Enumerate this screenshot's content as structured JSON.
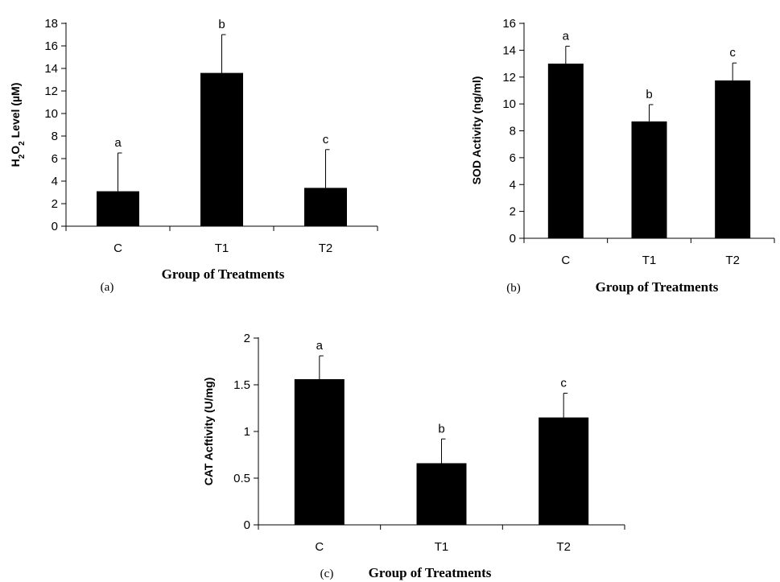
{
  "chart_data": [
    {
      "type": "bar",
      "panel_label": "(a)",
      "categories": [
        "C",
        "T1",
        "T2"
      ],
      "values": [
        3.1,
        13.6,
        3.4
      ],
      "error": [
        3.4,
        3.4,
        3.4
      ],
      "significance": [
        "a",
        "b",
        "c"
      ],
      "ylabel_parts": {
        "a": "H",
        "sub1": "2",
        "b": "O",
        "sub2": "2",
        "c": " Level (µM)"
      },
      "xlabel": "Group of Treatments",
      "ylim": [
        0,
        18
      ],
      "yticks": [
        "0",
        "2",
        "4",
        "6",
        "8",
        "10",
        "12",
        "14",
        "16",
        "18"
      ],
      "grid": false,
      "bar_color": "#000000"
    },
    {
      "type": "bar",
      "panel_label": "(b)",
      "categories": [
        "C",
        "T1",
        "T2"
      ],
      "values": [
        13.0,
        8.7,
        11.75
      ],
      "error": [
        1.3,
        1.25,
        1.3
      ],
      "significance": [
        "a",
        "b",
        "c"
      ],
      "ylabel": "SOD Activity (ng/ml)",
      "xlabel": "Group of Treatments",
      "ylim": [
        0,
        16
      ],
      "yticks": [
        "0",
        "2",
        "4",
        "6",
        "8",
        "10",
        "12",
        "14",
        "16"
      ],
      "grid": false,
      "bar_color": "#000000"
    },
    {
      "type": "bar",
      "panel_label": "(c)",
      "categories": [
        "C",
        "T1",
        "T2"
      ],
      "values": [
        1.56,
        0.66,
        1.15
      ],
      "error": [
        0.25,
        0.26,
        0.26
      ],
      "significance": [
        "a",
        "b",
        "c"
      ],
      "ylabel": "CAT Acftivity  (U/mg)",
      "xlabel": "Group of Treatments",
      "ylim": [
        0,
        2
      ],
      "yticks": [
        "0",
        "0.5",
        "1",
        "1.5",
        "2"
      ],
      "grid": false,
      "bar_color": "#000000"
    }
  ]
}
